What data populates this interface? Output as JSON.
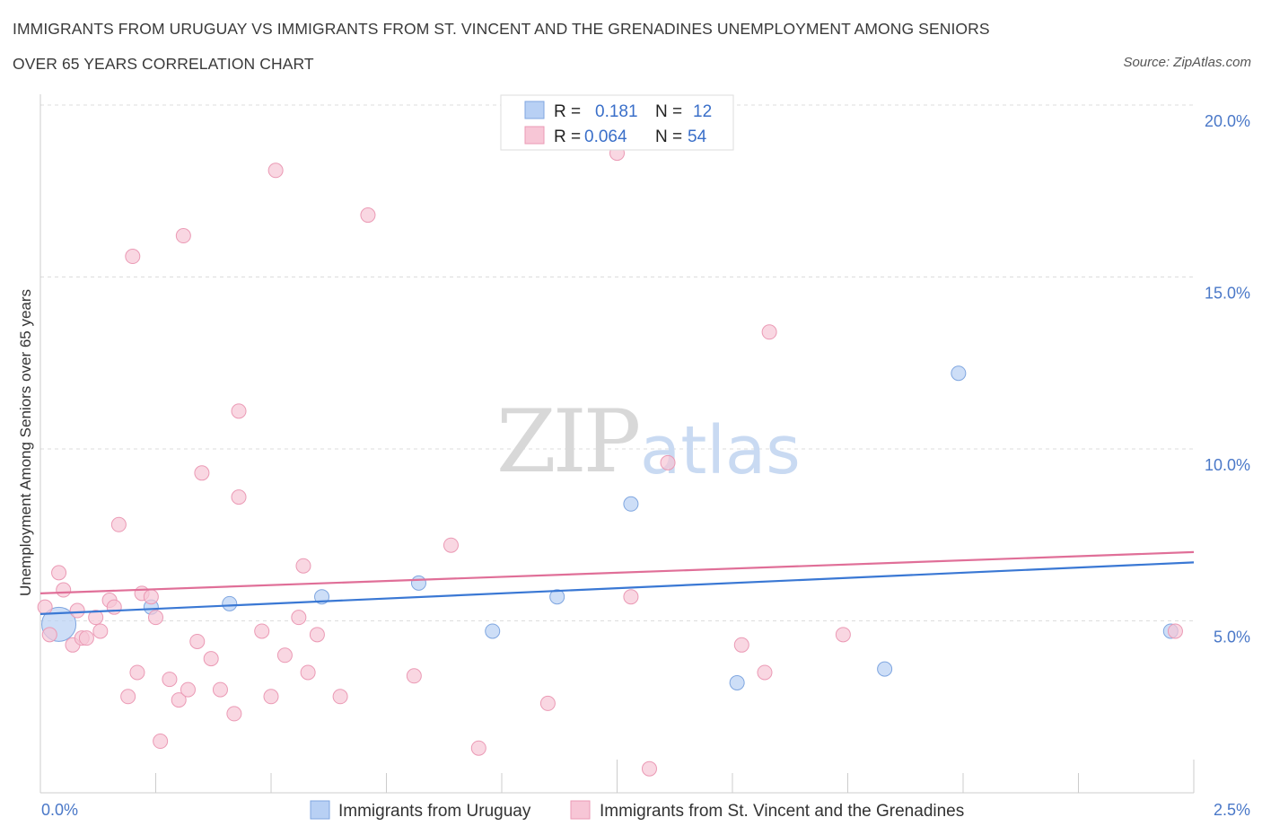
{
  "header": {
    "title_line1": "IMMIGRANTS FROM URUGUAY VS IMMIGRANTS FROM ST. VINCENT AND THE GRENADINES UNEMPLOYMENT AMONG SENIORS",
    "title_line2": "OVER 65 YEARS CORRELATION CHART",
    "source": "Source: ZipAtlas.com"
  },
  "watermark": {
    "part1": "ZIP",
    "part2": "atlas"
  },
  "stats_box": {
    "rows": [
      {
        "r_label": "R =",
        "r_value": "0.181",
        "n_label": "N =",
        "n_value": "12",
        "color": "#b8d0f4",
        "stroke": "#7fa6e0"
      },
      {
        "r_label": "R =",
        "r_value": "0.064",
        "n_label": "N =",
        "n_value": "54",
        "color": "#f7c6d6",
        "stroke": "#eb9ab5"
      }
    ]
  },
  "chart_data": {
    "type": "scatter",
    "title": "IMMIGRANTS FROM URUGUAY VS IMMIGRANTS FROM ST. VINCENT AND THE GRENADINES UNEMPLOYMENT AMONG SENIORS OVER 65 YEARS CORRELATION CHART",
    "xlabel": "",
    "ylabel": "Unemployment Among Seniors over 65 years",
    "xlim": [
      0,
      2.5
    ],
    "ylim": [
      0,
      20
    ],
    "x_tick_labels": [
      "0.0%",
      "2.5%"
    ],
    "y_ticks": [
      {
        "value": 5,
        "label": "5.0%"
      },
      {
        "value": 10,
        "label": "10.0%"
      },
      {
        "value": 15,
        "label": "15.0%"
      },
      {
        "value": 20,
        "label": "20.0%"
      }
    ],
    "grid": true,
    "legend_position": "bottom",
    "series": [
      {
        "name": "Immigrants from Uruguay",
        "color": "#b8d0f4",
        "stroke": "#7fa6e0",
        "line_color": "#3a78d4",
        "trend": {
          "x": [
            0,
            2.5
          ],
          "y": [
            5.2,
            6.7
          ]
        },
        "points": [
          {
            "x": 0.04,
            "y": 4.9,
            "big": true
          },
          {
            "x": 0.24,
            "y": 5.4
          },
          {
            "x": 0.41,
            "y": 5.5
          },
          {
            "x": 0.61,
            "y": 5.7
          },
          {
            "x": 0.82,
            "y": 6.1
          },
          {
            "x": 0.98,
            "y": 4.7
          },
          {
            "x": 1.12,
            "y": 5.7
          },
          {
            "x": 1.28,
            "y": 8.4
          },
          {
            "x": 1.51,
            "y": 3.2
          },
          {
            "x": 1.83,
            "y": 3.6
          },
          {
            "x": 1.99,
            "y": 12.2
          },
          {
            "x": 2.45,
            "y": 4.7
          }
        ]
      },
      {
        "name": "Immigrants from St. Vincent and the Grenadines",
        "color": "#f7c6d6",
        "stroke": "#eb9ab5",
        "line_color": "#e06f98",
        "trend": {
          "x": [
            0,
            2.5
          ],
          "y": [
            5.8,
            7.0
          ]
        },
        "points": [
          {
            "x": 0.01,
            "y": 5.4
          },
          {
            "x": 0.02,
            "y": 4.6
          },
          {
            "x": 0.04,
            "y": 6.4
          },
          {
            "x": 0.05,
            "y": 5.9
          },
          {
            "x": 0.07,
            "y": 4.3
          },
          {
            "x": 0.08,
            "y": 5.3
          },
          {
            "x": 0.09,
            "y": 4.5
          },
          {
            "x": 0.1,
            "y": 4.5
          },
          {
            "x": 0.12,
            "y": 5.1
          },
          {
            "x": 0.13,
            "y": 4.7
          },
          {
            "x": 0.15,
            "y": 5.6
          },
          {
            "x": 0.16,
            "y": 5.4
          },
          {
            "x": 0.17,
            "y": 7.8
          },
          {
            "x": 0.19,
            "y": 2.8
          },
          {
            "x": 0.2,
            "y": 15.6
          },
          {
            "x": 0.21,
            "y": 3.5
          },
          {
            "x": 0.22,
            "y": 5.8
          },
          {
            "x": 0.24,
            "y": 5.7
          },
          {
            "x": 0.25,
            "y": 5.1
          },
          {
            "x": 0.26,
            "y": 1.5
          },
          {
            "x": 0.28,
            "y": 3.3
          },
          {
            "x": 0.3,
            "y": 2.7
          },
          {
            "x": 0.31,
            "y": 16.2
          },
          {
            "x": 0.32,
            "y": 3.0
          },
          {
            "x": 0.34,
            "y": 4.4
          },
          {
            "x": 0.35,
            "y": 9.3
          },
          {
            "x": 0.37,
            "y": 3.9
          },
          {
            "x": 0.39,
            "y": 3.0
          },
          {
            "x": 0.42,
            "y": 2.3
          },
          {
            "x": 0.43,
            "y": 11.1
          },
          {
            "x": 0.43,
            "y": 8.6
          },
          {
            "x": 0.48,
            "y": 4.7
          },
          {
            "x": 0.5,
            "y": 2.8
          },
          {
            "x": 0.51,
            "y": 18.1
          },
          {
            "x": 0.53,
            "y": 4.0
          },
          {
            "x": 0.56,
            "y": 5.1
          },
          {
            "x": 0.57,
            "y": 6.6
          },
          {
            "x": 0.58,
            "y": 3.5
          },
          {
            "x": 0.6,
            "y": 4.6
          },
          {
            "x": 0.65,
            "y": 2.8
          },
          {
            "x": 0.71,
            "y": 16.8
          },
          {
            "x": 0.81,
            "y": 3.4
          },
          {
            "x": 0.89,
            "y": 7.2
          },
          {
            "x": 0.95,
            "y": 1.3
          },
          {
            "x": 1.1,
            "y": 2.6
          },
          {
            "x": 1.25,
            "y": 18.6
          },
          {
            "x": 1.28,
            "y": 5.7
          },
          {
            "x": 1.32,
            "y": 0.7
          },
          {
            "x": 1.36,
            "y": 9.6
          },
          {
            "x": 1.52,
            "y": 4.3
          },
          {
            "x": 1.57,
            "y": 3.5
          },
          {
            "x": 1.58,
            "y": 13.4
          },
          {
            "x": 1.74,
            "y": 4.6
          },
          {
            "x": 2.46,
            "y": 4.7
          }
        ]
      }
    ]
  }
}
